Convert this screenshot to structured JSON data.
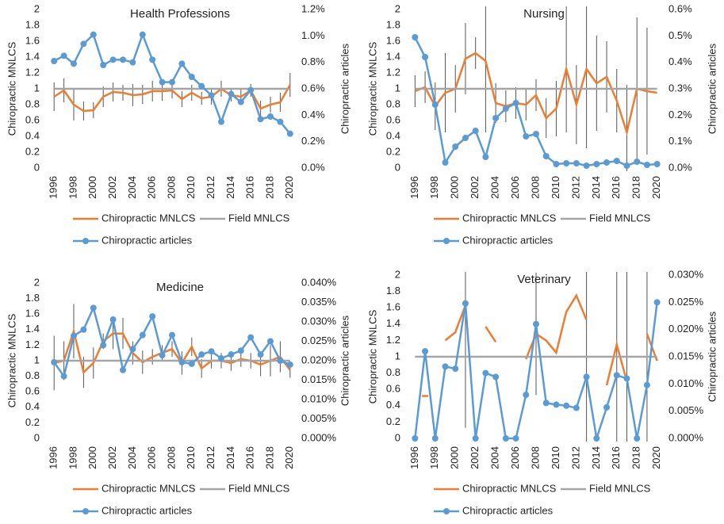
{
  "chart_data": [
    {
      "type": "line",
      "title": "Health Professions",
      "y_label": "Chiropractic MNLCS",
      "y2_label": "Chiropractic articles",
      "x": [
        1996,
        1997,
        1998,
        1999,
        2000,
        2001,
        2002,
        2003,
        2004,
        2005,
        2006,
        2007,
        2008,
        2009,
        2010,
        2011,
        2012,
        2013,
        2014,
        2015,
        2016,
        2017,
        2018,
        2019,
        2020
      ],
      "xlim": [
        1995.5,
        2020.5
      ],
      "xticks": [
        1996,
        1998,
        2000,
        2002,
        2004,
        2006,
        2008,
        2010,
        2012,
        2014,
        2016,
        2018,
        2020
      ],
      "ylim": [
        0,
        2
      ],
      "yticks": [
        0,
        0.2,
        0.4,
        0.6,
        0.8,
        1,
        1.2,
        1.4,
        1.6,
        1.8,
        2
      ],
      "y2lim": [
        0,
        1.2
      ],
      "y2ticks": [
        {
          "value": 0,
          "label": "0.0%"
        },
        {
          "value": 0.2,
          "label": "0.2%"
        },
        {
          "value": 0.4,
          "label": "0.4%"
        },
        {
          "value": 0.6,
          "label": "0.6%"
        },
        {
          "value": 0.8,
          "label": "0.8%"
        },
        {
          "value": 1,
          "label": "1.0%"
        },
        {
          "value": 1.2,
          "label": "1.2%"
        }
      ],
      "series": [
        {
          "name": "Chiropractic MNLCS",
          "color": "#ed7d31",
          "values": [
            0.9,
            0.98,
            0.8,
            0.72,
            0.73,
            0.9,
            0.96,
            0.95,
            0.92,
            0.93,
            0.97,
            0.97,
            0.98,
            0.87,
            0.95,
            0.88,
            0.9,
            1.0,
            0.92,
            0.9,
            0.98,
            0.75,
            0.8,
            0.83,
            1.05
          ],
          "errors": [
            0.18,
            0.15,
            0.2,
            0.12,
            0.1,
            0.13,
            0.12,
            0.1,
            0.14,
            0.12,
            0.13,
            0.12,
            0.1,
            0.1,
            0.1,
            0.08,
            0.1,
            0.1,
            0.08,
            0.1,
            0.08,
            0.1,
            0.1,
            0.12,
            0.15
          ]
        },
        {
          "name": "Field MNLCS",
          "color": "#a5a5a5",
          "values": [
            1,
            1,
            1,
            1,
            1,
            1,
            1,
            1,
            1,
            1,
            1,
            1,
            1,
            1,
            1,
            1,
            1,
            1,
            1,
            1,
            1,
            1,
            1,
            1,
            1
          ]
        },
        {
          "name": "Chiropractic articles",
          "color": "#5b9bd5",
          "axis": "y2",
          "values": [
            0.81,
            0.85,
            0.79,
            0.94,
            1.01,
            0.78,
            0.82,
            0.82,
            0.8,
            1.01,
            0.82,
            0.65,
            0.65,
            0.79,
            0.69,
            0.62,
            0.55,
            0.35,
            0.56,
            0.5,
            0.59,
            0.37,
            0.39,
            0.35,
            0.26
          ]
        }
      ]
    },
    {
      "type": "line",
      "title": "Nursing",
      "y_label": "Chiropractic MNLCS",
      "y2_label": "Chiropractic articles",
      "x": [
        1996,
        1997,
        1998,
        1999,
        2000,
        2001,
        2002,
        2003,
        2004,
        2005,
        2006,
        2007,
        2008,
        2009,
        2010,
        2011,
        2012,
        2013,
        2014,
        2015,
        2016,
        2017,
        2018,
        2019,
        2020
      ],
      "xlim": [
        1995.5,
        2020.5
      ],
      "xticks": [
        1996,
        1998,
        2000,
        2002,
        2004,
        2006,
        2008,
        2010,
        2012,
        2014,
        2016,
        2018,
        2020
      ],
      "ylim": [
        0,
        2
      ],
      "yticks": [
        0,
        0.2,
        0.4,
        0.6,
        0.8,
        1,
        1.2,
        1.4,
        1.6,
        1.8,
        2
      ],
      "y2lim": [
        0,
        0.6
      ],
      "y2ticks": [
        {
          "value": 0,
          "label": "0.0%"
        },
        {
          "value": 0.1,
          "label": "0.1%"
        },
        {
          "value": 0.2,
          "label": "0.2%"
        },
        {
          "value": 0.3,
          "label": "0.3%"
        },
        {
          "value": 0.4,
          "label": "0.4%"
        },
        {
          "value": 0.5,
          "label": "0.5%"
        },
        {
          "value": 0.6,
          "label": "0.6%"
        }
      ],
      "series": [
        {
          "name": "Chiropractic MNLCS",
          "color": "#ed7d31",
          "values": [
            0.97,
            1.02,
            0.78,
            0.95,
            1.0,
            1.38,
            1.45,
            1.35,
            0.82,
            0.78,
            0.82,
            0.8,
            0.92,
            0.63,
            0.75,
            1.25,
            0.8,
            1.25,
            1.07,
            1.15,
            0.85,
            0.45,
            1.0,
            0.97,
            0.95
          ],
          "errors": [
            0.2,
            0.2,
            0.3,
            0.5,
            0.3,
            0.45,
            0.2,
            0.9,
            0.25,
            0.2,
            0.2,
            0.2,
            0.2,
            0.25,
            0.35,
            0.8,
            0.5,
            1.0,
            0.6,
            0.45,
            0.4,
            0.6,
            0.9,
            0.8,
            null
          ]
        },
        {
          "name": "Field MNLCS",
          "color": "#a5a5a5",
          "values": [
            1,
            1,
            1,
            1,
            1,
            1,
            1,
            1,
            1,
            1,
            1,
            1,
            1,
            1,
            1,
            1,
            1,
            1,
            1,
            1,
            1,
            1,
            1,
            1,
            1
          ]
        },
        {
          "name": "Chiropractic articles",
          "color": "#5b9bd5",
          "axis": "y2",
          "values": [
            0.495,
            0.42,
            0.24,
            0.021,
            0.081,
            0.114,
            0.141,
            0.042,
            0.189,
            0.225,
            0.246,
            0.12,
            0.129,
            0.045,
            0.015,
            0.018,
            0.018,
            0.009,
            0.015,
            0.021,
            0.027,
            0.009,
            0.024,
            0.012,
            0.015
          ]
        }
      ]
    },
    {
      "type": "line",
      "title": "Medicine",
      "y_label": "Chiropractic MNLCS",
      "y2_label": "Chiropractic articles",
      "x": [
        1996,
        1997,
        1998,
        1999,
        2000,
        2001,
        2002,
        2003,
        2004,
        2005,
        2006,
        2007,
        2008,
        2009,
        2010,
        2011,
        2012,
        2013,
        2014,
        2015,
        2016,
        2017,
        2018,
        2019,
        2020
      ],
      "xlim": [
        1995.5,
        2020.5
      ],
      "xticks": [
        1996,
        1998,
        2000,
        2002,
        2004,
        2006,
        2008,
        2010,
        2012,
        2014,
        2016,
        2018,
        2020
      ],
      "ylim": [
        0,
        2
      ],
      "yticks": [
        0,
        0.2,
        0.4,
        0.6,
        0.8,
        1,
        1.2,
        1.4,
        1.6,
        1.8,
        2
      ],
      "y2lim": [
        0,
        0.04
      ],
      "y2ticks": [
        {
          "value": 0,
          "label": "0.000%"
        },
        {
          "value": 0.005,
          "label": "0.005%"
        },
        {
          "value": 0.01,
          "label": "0.010%"
        },
        {
          "value": 0.015,
          "label": "0.015%"
        },
        {
          "value": 0.02,
          "label": "0.020%"
        },
        {
          "value": 0.025,
          "label": "0.025%"
        },
        {
          "value": 0.03,
          "label": "0.030%"
        },
        {
          "value": 0.035,
          "label": "0.035%"
        },
        {
          "value": 0.04,
          "label": "0.040%"
        }
      ],
      "series": [
        {
          "name": "Chiropractic MNLCS",
          "color": "#ed7d31",
          "values": [
            0.97,
            1.0,
            1.38,
            0.85,
            0.97,
            1.25,
            1.35,
            1.35,
            1.1,
            0.98,
            1.05,
            1.1,
            1.15,
            0.97,
            1.18,
            0.9,
            1.0,
            1.0,
            0.97,
            1.02,
            1.0,
            0.95,
            1.0,
            1.05,
            0.88
          ],
          "errors": [
            0.35,
            0.25,
            0.35,
            0.2,
            0.2,
            0.1,
            0.2,
            0.2,
            0.15,
            0.15,
            0.1,
            0.1,
            0.1,
            0.15,
            0.12,
            0.12,
            0.1,
            0.1,
            0.1,
            0.1,
            0.1,
            0.15,
            0.2,
            0.2,
            0.1
          ]
        },
        {
          "name": "Field MNLCS",
          "color": "#a5a5a5",
          "values": [
            1,
            1,
            1,
            1,
            1,
            1,
            1,
            1,
            1,
            1,
            1,
            1,
            1,
            1,
            1,
            1,
            1,
            1,
            1,
            1,
            1,
            1,
            1,
            1,
            1
          ]
        },
        {
          "name": "Chiropractic articles",
          "color": "#5b9bd5",
          "axis": "y2",
          "values": [
            0.0196,
            0.016,
            0.0264,
            0.028,
            0.0336,
            0.024,
            0.0306,
            0.0176,
            0.023,
            0.0266,
            0.0314,
            0.0214,
            0.0266,
            0.0196,
            0.0192,
            0.0216,
            0.0224,
            0.0206,
            0.0216,
            0.0226,
            0.026,
            0.0216,
            0.025,
            0.02,
            0.019
          ]
        }
      ]
    },
    {
      "type": "line",
      "title": "Veterinary",
      "y_label": "Chiropractic MNLCS",
      "y2_label": "Chiropractic articles",
      "x": [
        1996,
        1997,
        1998,
        1999,
        2000,
        2001,
        2002,
        2003,
        2004,
        2005,
        2006,
        2007,
        2008,
        2009,
        2010,
        2011,
        2012,
        2013,
        2014,
        2015,
        2016,
        2017,
        2018,
        2019,
        2020
      ],
      "xlim": [
        1995.5,
        2020.5
      ],
      "xticks": [
        1996,
        1998,
        2000,
        2002,
        2004,
        2006,
        2008,
        2010,
        2012,
        2014,
        2016,
        2018,
        2020
      ],
      "ylim": [
        0,
        2
      ],
      "yticks": [
        0,
        0.2,
        0.4,
        0.6,
        0.8,
        1,
        1.2,
        1.4,
        1.6,
        1.8,
        2
      ],
      "y2lim": [
        0,
        0.03
      ],
      "y2ticks": [
        {
          "value": 0,
          "label": "0.000%"
        },
        {
          "value": 0.005,
          "label": "0.005%"
        },
        {
          "value": 0.01,
          "label": "0.010%"
        },
        {
          "value": 0.015,
          "label": "0.015%"
        },
        {
          "value": 0.02,
          "label": "0.020%"
        },
        {
          "value": 0.025,
          "label": "0.025%"
        },
        {
          "value": 0.03,
          "label": "0.030%"
        }
      ],
      "series": [
        {
          "name": "Chiropractic MNLCS",
          "color": "#ed7d31",
          "values": [
            null,
            0.52,
            null,
            1.2,
            1.3,
            1.63,
            null,
            1.37,
            1.18,
            null,
            null,
            0.97,
            1.28,
            1.2,
            1.05,
            1.55,
            1.75,
            1.45,
            null,
            0.65,
            1.15,
            0.7,
            null,
            1.28,
            0.95
          ],
          "errors": [
            null,
            null,
            null,
            null,
            null,
            1.5,
            null,
            null,
            null,
            null,
            null,
            null,
            0.75,
            null,
            null,
            null,
            null,
            1.5,
            null,
            null,
            1.5,
            1.5,
            null,
            1.5,
            null
          ]
        },
        {
          "name": "Field MNLCS",
          "color": "#a5a5a5",
          "values": [
            1,
            1,
            1,
            1,
            1,
            1,
            1,
            1,
            1,
            1,
            1,
            1,
            1,
            1,
            1,
            1,
            1,
            1,
            1,
            1,
            1,
            1,
            1,
            1,
            1
          ]
        },
        {
          "name": "Chiropractic articles",
          "color": "#5b9bd5",
          "axis": "y2",
          "values": [
            0,
            0.016,
            0,
            0.0132,
            0.0128,
            0.0248,
            0,
            0.012,
            0.0113,
            0,
            0,
            0.008,
            0.021,
            0.0065,
            0.0062,
            0.006,
            0.0056,
            0.0113,
            0,
            0.0057,
            0.0116,
            0.011,
            0,
            0.0098,
            0.025
          ]
        }
      ]
    }
  ]
}
